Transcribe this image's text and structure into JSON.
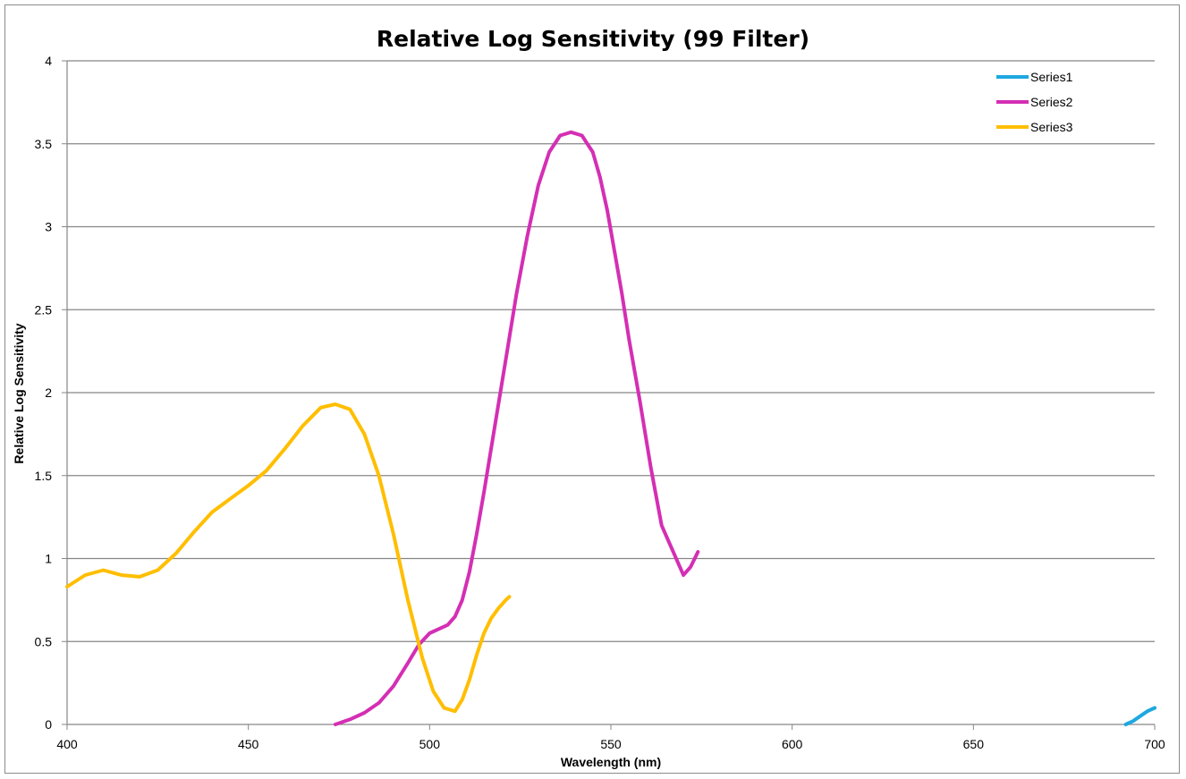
{
  "chart_data": {
    "type": "line",
    "title": "Relative Log Sensitivity (99 Filter)",
    "xlabel": "Wavelength (nm)",
    "ylabel": "Relative Log Sensitivity",
    "xlim": [
      400,
      700
    ],
    "ylim": [
      0,
      4
    ],
    "x_ticks": [
      "400",
      "450",
      "500",
      "550",
      "600",
      "650",
      "700"
    ],
    "y_ticks": [
      "0",
      "0.5",
      "1",
      "1.5",
      "2",
      "2.5",
      "3",
      "3.5",
      "4"
    ],
    "grid": "horizontal",
    "legend_position": "top-right",
    "series": [
      {
        "name": "Series1",
        "color": "#1ea8e0",
        "x": [
          692,
          694,
          696,
          698,
          700
        ],
        "y": [
          0.0,
          0.02,
          0.05,
          0.08,
          0.1
        ]
      },
      {
        "name": "Series2",
        "color": "#d42fb4",
        "x": [
          474,
          478,
          482,
          486,
          490,
          494,
          497,
          500,
          503,
          505,
          507,
          509,
          511,
          513,
          515,
          518,
          521,
          524,
          527,
          530,
          533,
          536,
          539,
          542,
          545,
          547,
          549,
          551,
          553,
          555,
          558,
          561,
          564,
          567,
          570,
          572,
          574
        ],
        "y": [
          0.0,
          0.03,
          0.07,
          0.13,
          0.23,
          0.37,
          0.48,
          0.55,
          0.58,
          0.6,
          0.65,
          0.75,
          0.92,
          1.15,
          1.4,
          1.8,
          2.2,
          2.6,
          2.95,
          3.25,
          3.45,
          3.55,
          3.57,
          3.55,
          3.45,
          3.3,
          3.1,
          2.85,
          2.6,
          2.32,
          1.95,
          1.55,
          1.2,
          1.05,
          0.9,
          0.95,
          1.04
        ]
      },
      {
        "name": "Series3",
        "color": "#ffbe00",
        "x": [
          400,
          405,
          410,
          415,
          420,
          425,
          430,
          435,
          440,
          445,
          450,
          455,
          460,
          465,
          470,
          474,
          478,
          482,
          486,
          490,
          494,
          498,
          501,
          504,
          507,
          509,
          511,
          513,
          515,
          517,
          519,
          521,
          522
        ],
        "y": [
          0.83,
          0.9,
          0.93,
          0.9,
          0.89,
          0.93,
          1.03,
          1.16,
          1.28,
          1.36,
          1.44,
          1.53,
          1.66,
          1.8,
          1.91,
          1.93,
          1.9,
          1.75,
          1.5,
          1.15,
          0.75,
          0.4,
          0.2,
          0.1,
          0.08,
          0.15,
          0.27,
          0.42,
          0.55,
          0.64,
          0.7,
          0.75,
          0.77
        ]
      }
    ]
  }
}
